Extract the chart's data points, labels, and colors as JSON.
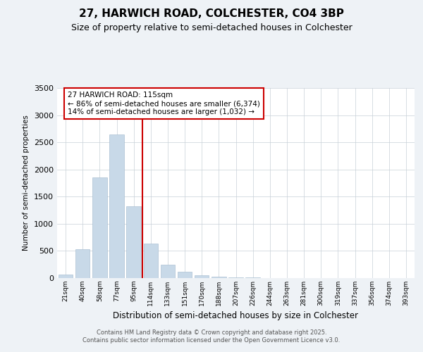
{
  "title1": "27, HARWICH ROAD, COLCHESTER, CO4 3BP",
  "title2": "Size of property relative to semi-detached houses in Colchester",
  "xlabel": "Distribution of semi-detached houses by size in Colchester",
  "ylabel": "Number of semi-detached properties",
  "categories": [
    "21sqm",
    "40sqm",
    "58sqm",
    "77sqm",
    "95sqm",
    "114sqm",
    "133sqm",
    "151sqm",
    "170sqm",
    "188sqm",
    "207sqm",
    "226sqm",
    "244sqm",
    "263sqm",
    "281sqm",
    "300sqm",
    "319sqm",
    "337sqm",
    "356sqm",
    "374sqm",
    "393sqm"
  ],
  "values": [
    70,
    530,
    1850,
    2640,
    1320,
    630,
    240,
    120,
    55,
    30,
    15,
    7,
    3,
    2,
    1,
    1,
    0,
    0,
    0,
    0,
    0
  ],
  "bar_color": "#c8d9e8",
  "highlight_index": 5,
  "highlight_line_color": "#cc0000",
  "annotation_text": "27 HARWICH ROAD: 115sqm\n← 86% of semi-detached houses are smaller (6,374)\n14% of semi-detached houses are larger (1,032) →",
  "annotation_box_color": "#cc0000",
  "footer_text": "Contains HM Land Registry data © Crown copyright and database right 2025.\nContains public sector information licensed under the Open Government Licence v3.0.",
  "ylim": [
    0,
    3500
  ],
  "yticks": [
    0,
    500,
    1000,
    1500,
    2000,
    2500,
    3000,
    3500
  ],
  "background_color": "#eef2f6",
  "plot_background": "#ffffff",
  "grid_color": "#c8d0d8"
}
